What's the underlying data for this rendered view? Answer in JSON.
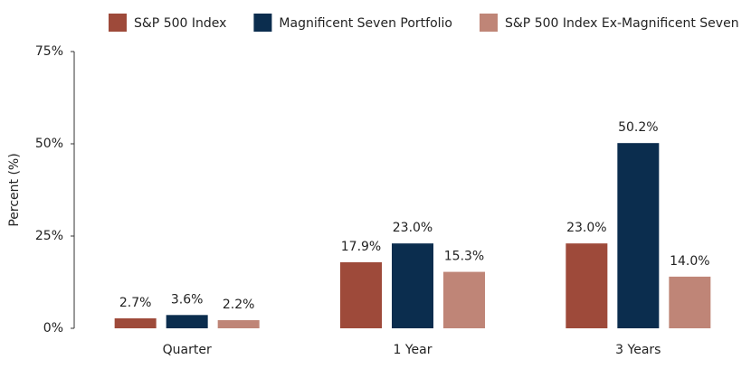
{
  "chart_data": {
    "type": "bar",
    "categories": [
      "Quarter",
      "1 Year",
      "3 Years"
    ],
    "series": [
      {
        "name": "S&P 500 Index",
        "color": "#9e4a3a",
        "values": [
          2.7,
          17.9,
          23.0
        ],
        "value_labels": [
          "2.7%",
          "17.9%",
          "23.0%"
        ]
      },
      {
        "name": "Magnificent Seven Portfolio",
        "color": "#0b2d4e",
        "values": [
          3.6,
          23.0,
          50.2
        ],
        "value_labels": [
          "3.6%",
          "23.0%",
          "50.2%"
        ]
      },
      {
        "name": "S&P 500 Index Ex-Magnificent Seven",
        "color": "#bf8577",
        "values": [
          2.2,
          15.3,
          14.0
        ],
        "value_labels": [
          "2.2%",
          "15.3%",
          "14.0%"
        ]
      }
    ],
    "y_label": "Percent (%)",
    "ylim": [
      0,
      75
    ],
    "yticks": [
      {
        "value": 0,
        "label": "0%"
      },
      {
        "value": 25,
        "label": "25%"
      },
      {
        "value": 50,
        "label": "50%"
      },
      {
        "value": 75,
        "label": "75%"
      }
    ],
    "legend": "top"
  }
}
